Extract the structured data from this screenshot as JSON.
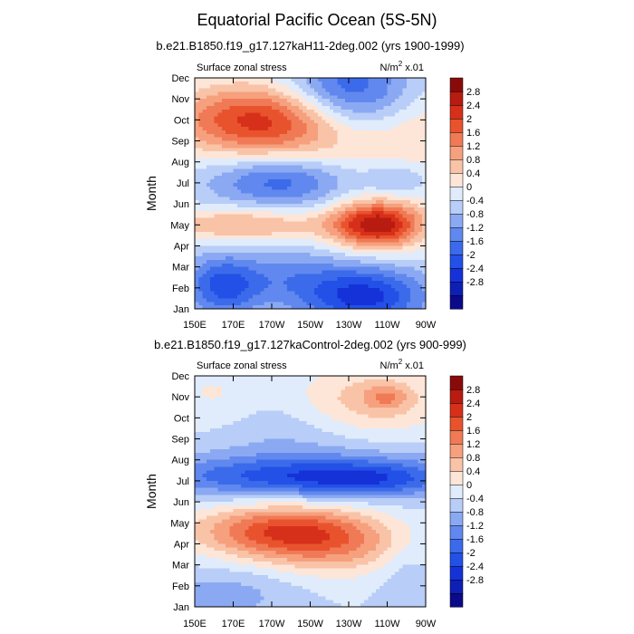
{
  "page_title": "Equatorial Pacific Ocean (5S-5N)",
  "chart_data": [
    {
      "type": "heatmap",
      "subtitle": "b.e21.B1850.f19_g17.127kaH11-2deg.002 (yrs 1900-1999)",
      "left_label": "Surface zonal stress",
      "units_label": "N/m",
      "units_sup": "2",
      "units_suffix": " x.01",
      "ylabel": "Month",
      "xlabel": "",
      "x_ticks": [
        "150E",
        "170E",
        "170W",
        "150W",
        "130W",
        "110W",
        "90W"
      ],
      "y_ticks": [
        "Jan",
        "Feb",
        "Mar",
        "Apr",
        "May",
        "Jun",
        "Jul",
        "Aug",
        "Sep",
        "Oct",
        "Nov",
        "Dec"
      ],
      "xlim": [
        150,
        270
      ],
      "ylim": [
        1,
        12
      ],
      "features": [
        {
          "lon": 185,
          "month": 10.0,
          "slon": 34,
          "smon": 1.2,
          "amp": 2.3
        },
        {
          "lon": 240,
          "month": 9.6,
          "slon": 45,
          "smon": 1.8,
          "amp": 1.2
        },
        {
          "lon": 230,
          "month": 11.0,
          "slon": 24,
          "smon": 1.5,
          "amp": -2.5
        },
        {
          "lon": 195,
          "month": 7.1,
          "slon": 26,
          "smon": 0.9,
          "amp": -1.6
        },
        {
          "lon": 255,
          "month": 7.2,
          "slon": 12,
          "smon": 0.6,
          "amp": -0.7
        },
        {
          "lon": 245,
          "month": 5.0,
          "slon": 17,
          "smon": 0.8,
          "amp": 3.1
        },
        {
          "lon": 175,
          "month": 5.0,
          "slon": 30,
          "smon": 0.6,
          "amp": 1.3
        },
        {
          "lon": 165,
          "month": 2.1,
          "slon": 14,
          "smon": 1.0,
          "amp": -1.8
        },
        {
          "lon": 238,
          "month": 1.6,
          "slon": 22,
          "smon": 1.0,
          "amp": -2.2
        },
        {
          "lon": 200,
          "month": 2.5,
          "slon": 18,
          "smon": 1.0,
          "amp": -0.8
        }
      ]
    },
    {
      "type": "heatmap",
      "subtitle": "b.e21.B1850.f19_g17.127kaControl-2deg.002 (yrs 900-999)",
      "left_label": "Surface zonal stress",
      "units_label": "N/m",
      "units_sup": "2",
      "units_suffix": " x.01",
      "ylabel": "Month",
      "xlabel": "",
      "x_ticks": [
        "150E",
        "170E",
        "170W",
        "150W",
        "130W",
        "110W",
        "90W"
      ],
      "y_ticks": [
        "Jan",
        "Feb",
        "Mar",
        "Apr",
        "May",
        "Jun",
        "Jul",
        "Aug",
        "Sep",
        "Oct",
        "Nov",
        "Dec"
      ],
      "xlim": [
        150,
        270
      ],
      "ylim": [
        1,
        12
      ],
      "features": [
        {
          "lon": 195,
          "month": 4.6,
          "slon": 32,
          "smon": 0.9,
          "amp": 2.2
        },
        {
          "lon": 225,
          "month": 3.8,
          "slon": 28,
          "smon": 1.0,
          "amp": 1.0
        },
        {
          "lon": 240,
          "month": 10.6,
          "slon": 28,
          "smon": 1.3,
          "amp": 1.3
        },
        {
          "lon": 250,
          "month": 11.0,
          "slon": 8,
          "smon": 0.4,
          "amp": 0.8
        },
        {
          "lon": 160,
          "month": 11.0,
          "slon": 18,
          "smon": 1.2,
          "amp": 0.5
        },
        {
          "lon": 210,
          "month": 7.2,
          "slon": 60,
          "smon": 0.7,
          "amp": -1.8
        },
        {
          "lon": 240,
          "month": 7.0,
          "slon": 22,
          "smon": 0.5,
          "amp": -0.6
        },
        {
          "lon": 215,
          "month": 9.3,
          "slon": 40,
          "smon": 1.4,
          "amp": -0.6
        },
        {
          "lon": 165,
          "month": 1.6,
          "slon": 25,
          "smon": 0.9,
          "amp": -0.6
        },
        {
          "lon": 260,
          "month": 2.5,
          "slon": 10,
          "smon": 1.5,
          "amp": -0.4
        }
      ]
    }
  ],
  "colorbar": {
    "labels": [
      "2.8",
      "2.4",
      "2",
      "1.6",
      "1.2",
      "0.8",
      "0.4",
      "0",
      "-0.4",
      "-0.8",
      "-1.2",
      "-1.6",
      "-2",
      "-2.4",
      "-2.8"
    ],
    "levels": [
      -3.2,
      -2.8,
      -2.4,
      -2.0,
      -1.6,
      -1.2,
      -0.8,
      -0.4,
      0,
      0.4,
      0.8,
      1.2,
      1.6,
      2.0,
      2.4,
      2.8,
      3.2
    ],
    "colors": [
      "#0a0a8a",
      "#0e1fb5",
      "#1532d8",
      "#2350e6",
      "#3b6bea",
      "#6088ee",
      "#8ba9f2",
      "#b8cdf7",
      "#e0ecfb",
      "#fde6d8",
      "#f9c3a8",
      "#f6a07e",
      "#f07a55",
      "#e8532d",
      "#d7301a",
      "#b81c10",
      "#8a0a0a"
    ]
  }
}
